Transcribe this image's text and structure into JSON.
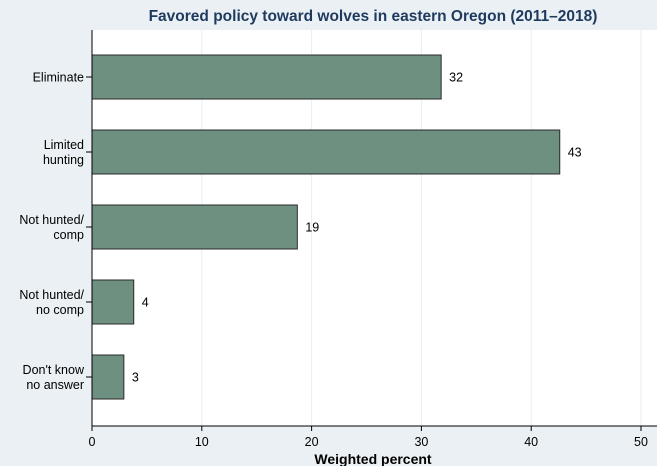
{
  "chart_data": {
    "type": "bar",
    "orientation": "horizontal",
    "title": "Favored policy toward wolves in eastern Oregon  (2011–2018)",
    "xlabel": "Weighted percent",
    "ylabel": "",
    "categories": [
      [
        "Eliminate"
      ],
      [
        "Limited",
        "hunting"
      ],
      [
        "Not hunted/",
        "comp"
      ],
      [
        "Not hunted/",
        "no comp"
      ],
      [
        "Don't know",
        "no answer"
      ]
    ],
    "values": [
      31.8,
      42.6,
      18.7,
      3.8,
      2.9
    ],
    "data_labels": [
      "32",
      "43",
      "19",
      "4",
      "3"
    ],
    "xlim": [
      0,
      50
    ],
    "xticks": [
      0,
      10,
      20,
      30,
      40,
      50
    ],
    "xtick_labels": [
      "0",
      "10",
      "20",
      "30",
      "40",
      "50"
    ],
    "grid": true,
    "colors": {
      "bar_fill": "#6e9080",
      "bar_stroke": "#2a2a2a",
      "title": "#1f3a5f",
      "plot_background": "#ffffff",
      "outer_background": "#eaf0f3",
      "grid": "#e6eef2"
    }
  }
}
